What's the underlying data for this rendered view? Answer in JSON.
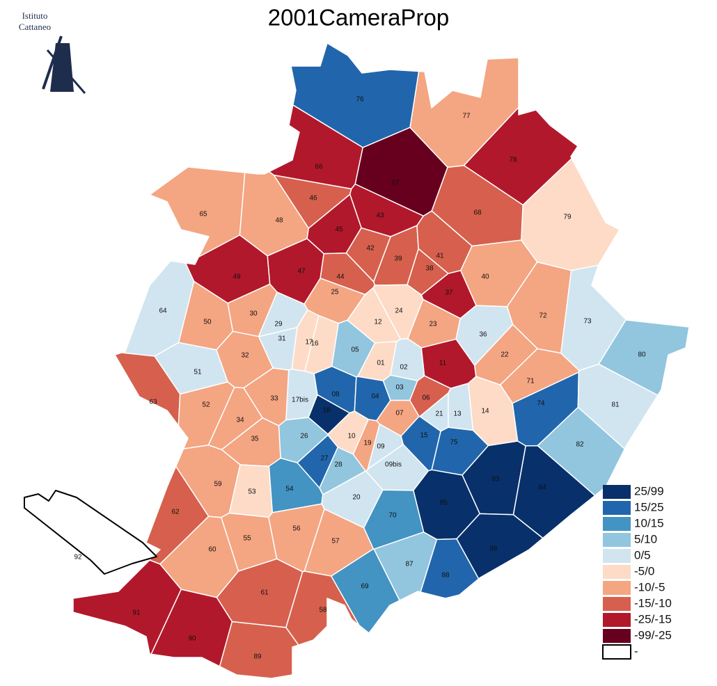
{
  "title": "2001CameraProp",
  "logo": [
    "Istituto",
    "Cattaneo"
  ],
  "legend": [
    {
      "label": "25/99",
      "color": "#08306b"
    },
    {
      "label": "15/25",
      "color": "#2166ac"
    },
    {
      "label": "10/15",
      "color": "#4393c3"
    },
    {
      "label": "5/10",
      "color": "#92c5de"
    },
    {
      "label": "0/5",
      "color": "#d1e5f0"
    },
    {
      "label": "-5/0",
      "color": "#fddbc7"
    },
    {
      "label": "-10/-5",
      "color": "#f4a582"
    },
    {
      "label": "-15/-10",
      "color": "#d6604d"
    },
    {
      "label": "-25/-15",
      "color": "#b2182b"
    },
    {
      "label": "-99/-25",
      "color": "#67001f"
    },
    {
      "label": "-",
      "color": "#ffffff"
    }
  ],
  "zones": [
    {
      "label": "76",
      "class": "15/25"
    },
    {
      "label": "77",
      "class": "-10/-5"
    },
    {
      "label": "78",
      "class": "-25/-15"
    },
    {
      "label": "79",
      "class": "-5/0"
    },
    {
      "label": "66",
      "class": "-25/-15"
    },
    {
      "label": "67",
      "class": "-99/-25"
    },
    {
      "label": "46",
      "class": "-15/-10"
    },
    {
      "label": "43",
      "class": "-25/-15"
    },
    {
      "label": "68",
      "class": "-15/-10"
    },
    {
      "label": "65",
      "class": "-10/-5"
    },
    {
      "label": "48",
      "class": "-10/-5"
    },
    {
      "label": "45",
      "class": "-25/-15"
    },
    {
      "label": "42",
      "class": "-15/-10"
    },
    {
      "label": "39",
      "class": "-15/-10"
    },
    {
      "label": "41",
      "class": "-15/-10"
    },
    {
      "label": "38",
      "class": "-15/-10"
    },
    {
      "label": "37",
      "class": "-25/-15"
    },
    {
      "label": "40",
      "class": "-10/-5"
    },
    {
      "label": "49",
      "class": "-25/-15"
    },
    {
      "label": "47",
      "class": "-25/-15"
    },
    {
      "label": "44",
      "class": "-15/-10"
    },
    {
      "label": "25",
      "class": "-10/-5"
    },
    {
      "label": "64",
      "class": "0/5"
    },
    {
      "label": "50",
      "class": "-10/-5"
    },
    {
      "label": "30",
      "class": "-10/-5"
    },
    {
      "label": "29",
      "class": "0/5"
    },
    {
      "label": "31",
      "class": "0/5"
    },
    {
      "label": "17",
      "class": "-5/0"
    },
    {
      "label": "16",
      "class": "-5/0"
    },
    {
      "label": "24",
      "class": "-5/0"
    },
    {
      "label": "12",
      "class": "-5/0"
    },
    {
      "label": "23",
      "class": "-10/-5"
    },
    {
      "label": "36",
      "class": "0/5"
    },
    {
      "label": "72",
      "class": "-10/-5"
    },
    {
      "label": "73",
      "class": "0/5"
    },
    {
      "label": "80",
      "class": "5/10"
    },
    {
      "label": "05",
      "class": "5/10"
    },
    {
      "label": "01",
      "class": "-5/0"
    },
    {
      "label": "02",
      "class": "0/5"
    },
    {
      "label": "11",
      "class": "-25/-15"
    },
    {
      "label": "22",
      "class": "-10/-5"
    },
    {
      "label": "71",
      "class": "-10/-5"
    },
    {
      "label": "51",
      "class": "0/5"
    },
    {
      "label": "32",
      "class": "-10/-5"
    },
    {
      "label": "63",
      "class": "-15/-10"
    },
    {
      "label": "52",
      "class": "-10/-5"
    },
    {
      "label": "33",
      "class": "-10/-5"
    },
    {
      "label": "17bis",
      "class": "0/5"
    },
    {
      "label": "08",
      "class": "15/25"
    },
    {
      "label": "18",
      "class": "25/99"
    },
    {
      "label": "04",
      "class": "15/25"
    },
    {
      "label": "03",
      "class": "5/10"
    },
    {
      "label": "06",
      "class": "-15/-10"
    },
    {
      "label": "07",
      "class": "-10/-5"
    },
    {
      "label": "21",
      "class": "0/5"
    },
    {
      "label": "13",
      "class": "0/5"
    },
    {
      "label": "14",
      "class": "-5/0"
    },
    {
      "label": "74",
      "class": "15/25"
    },
    {
      "label": "81",
      "class": "0/5"
    },
    {
      "label": "34",
      "class": "-10/-5"
    },
    {
      "label": "35",
      "class": "-10/-5"
    },
    {
      "label": "26",
      "class": "5/10"
    },
    {
      "label": "10",
      "class": "-5/0"
    },
    {
      "label": "19",
      "class": "-10/-5"
    },
    {
      "label": "09",
      "class": "0/5"
    },
    {
      "label": "15",
      "class": "15/25"
    },
    {
      "label": "75",
      "class": "15/25"
    },
    {
      "label": "82",
      "class": "5/10"
    },
    {
      "label": "27",
      "class": "15/25"
    },
    {
      "label": "28",
      "class": "5/10"
    },
    {
      "label": "09bis",
      "class": "0/5"
    },
    {
      "label": "59",
      "class": "-10/-5"
    },
    {
      "label": "53",
      "class": "-5/0"
    },
    {
      "label": "54",
      "class": "10/15"
    },
    {
      "label": "20",
      "class": "0/5"
    },
    {
      "label": "83",
      "class": "25/99"
    },
    {
      "label": "84",
      "class": "25/99"
    },
    {
      "label": "85",
      "class": "25/99"
    },
    {
      "label": "62",
      "class": "-15/-10"
    },
    {
      "label": "70",
      "class": "10/15"
    },
    {
      "label": "55",
      "class": "-10/-5"
    },
    {
      "label": "56",
      "class": "-10/-5"
    },
    {
      "label": "57",
      "class": "-10/-5"
    },
    {
      "label": "60",
      "class": "-10/-5"
    },
    {
      "label": "87",
      "class": "5/10"
    },
    {
      "label": "88",
      "class": "15/25"
    },
    {
      "label": "86",
      "class": "25/99"
    },
    {
      "label": "61",
      "class": "-15/-10"
    },
    {
      "label": "58",
      "class": "-15/-10"
    },
    {
      "label": "69",
      "class": "10/15"
    },
    {
      "label": "91",
      "class": "-25/-15"
    },
    {
      "label": "90",
      "class": "-25/-15"
    },
    {
      "label": "89",
      "class": "-15/-10"
    },
    {
      "label": "92",
      "class": "-"
    }
  ]
}
